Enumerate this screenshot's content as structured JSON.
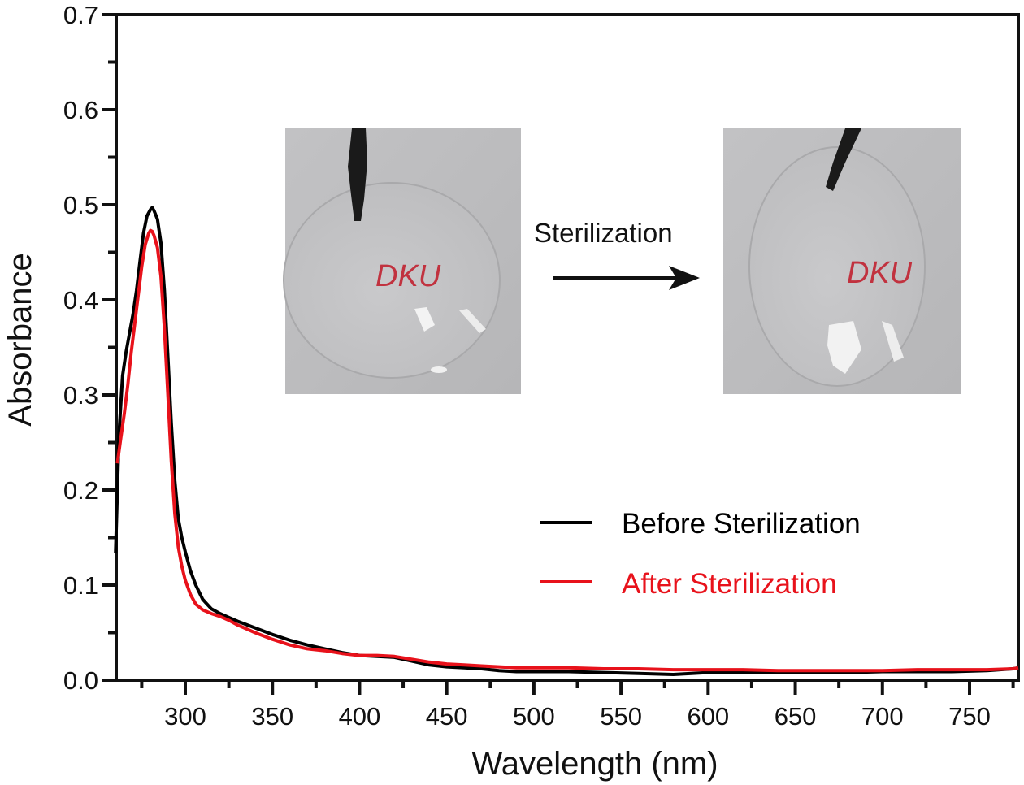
{
  "chart_data": {
    "type": "line",
    "title": "",
    "xlabel": "Wavelength (nm)",
    "ylabel": "Absorbance",
    "xlim": [
      260,
      778
    ],
    "ylim": [
      0.0,
      0.7
    ],
    "grid": false,
    "x_ticks": [
      300,
      350,
      400,
      450,
      500,
      550,
      600,
      650,
      700,
      750
    ],
    "x_tick_labels": [
      "300",
      "350",
      "400",
      "450",
      "500",
      "550",
      "600",
      "650",
      "700",
      "750"
    ],
    "x_minor_ticks": [
      275,
      325,
      375,
      425,
      475,
      525,
      575,
      625,
      675,
      725,
      775
    ],
    "y_ticks": [
      0.0,
      0.1,
      0.2,
      0.3,
      0.4,
      0.5,
      0.6,
      0.7
    ],
    "y_tick_labels": [
      "0.0",
      "0.1",
      "0.2",
      "0.3",
      "0.4",
      "0.5",
      "0.6",
      "0.7"
    ],
    "y_minor_ticks": [
      0.05,
      0.15,
      0.25,
      0.35,
      0.45,
      0.55,
      0.65
    ],
    "legend_position": "center-right",
    "series": [
      {
        "name": "Before Sterilization",
        "color": "#000000",
        "x": [
          260,
          262,
          264,
          266,
          268,
          270,
          272,
          274,
          276,
          278,
          280,
          281,
          282,
          284,
          286,
          288,
          290,
          292,
          294,
          296,
          298,
          300,
          303,
          306,
          310,
          315,
          320,
          325,
          330,
          340,
          350,
          360,
          370,
          380,
          390,
          400,
          410,
          420,
          430,
          440,
          450,
          460,
          470,
          480,
          490,
          500,
          520,
          540,
          560,
          580,
          600,
          620,
          640,
          660,
          680,
          700,
          720,
          740,
          760,
          775,
          778
        ],
        "y": [
          0.134,
          0.26,
          0.32,
          0.345,
          0.365,
          0.385,
          0.41,
          0.44,
          0.47,
          0.488,
          0.495,
          0.497,
          0.494,
          0.485,
          0.46,
          0.41,
          0.34,
          0.27,
          0.21,
          0.17,
          0.15,
          0.135,
          0.115,
          0.1,
          0.085,
          0.075,
          0.07,
          0.066,
          0.062,
          0.055,
          0.048,
          0.042,
          0.037,
          0.033,
          0.029,
          0.026,
          0.025,
          0.024,
          0.02,
          0.016,
          0.014,
          0.013,
          0.012,
          0.01,
          0.009,
          0.009,
          0.009,
          0.008,
          0.007,
          0.006,
          0.008,
          0.008,
          0.008,
          0.008,
          0.008,
          0.009,
          0.009,
          0.009,
          0.01,
          0.012,
          0.013
        ]
      },
      {
        "name": "After Sterilization",
        "color": "#e8121b",
        "x": [
          261,
          263,
          265,
          267,
          269,
          271,
          273,
          275,
          277,
          279,
          280,
          281,
          282,
          284,
          286,
          288,
          290,
          292,
          294,
          296,
          298,
          300,
          303,
          306,
          310,
          315,
          320,
          325,
          330,
          340,
          350,
          360,
          370,
          380,
          390,
          400,
          410,
          420,
          430,
          440,
          450,
          460,
          470,
          480,
          490,
          500,
          520,
          540,
          560,
          580,
          600,
          620,
          640,
          660,
          680,
          700,
          720,
          740,
          760,
          775,
          778
        ],
        "y": [
          0.228,
          0.255,
          0.28,
          0.31,
          0.345,
          0.375,
          0.405,
          0.435,
          0.458,
          0.47,
          0.473,
          0.472,
          0.468,
          0.455,
          0.425,
          0.37,
          0.3,
          0.23,
          0.175,
          0.14,
          0.12,
          0.105,
          0.09,
          0.08,
          0.074,
          0.07,
          0.067,
          0.063,
          0.058,
          0.05,
          0.043,
          0.037,
          0.033,
          0.031,
          0.028,
          0.026,
          0.026,
          0.025,
          0.022,
          0.019,
          0.017,
          0.016,
          0.015,
          0.014,
          0.013,
          0.013,
          0.013,
          0.012,
          0.012,
          0.011,
          0.011,
          0.011,
          0.01,
          0.01,
          0.01,
          0.01,
          0.011,
          0.011,
          0.011,
          0.012,
          0.013
        ]
      }
    ],
    "annotations": {
      "arrow_label": "Sterilization",
      "inset_before": {
        "label": "DKU",
        "description": "transparent film before sterilization"
      },
      "inset_after": {
        "label": "DKU",
        "description": "transparent film after sterilization"
      }
    }
  }
}
